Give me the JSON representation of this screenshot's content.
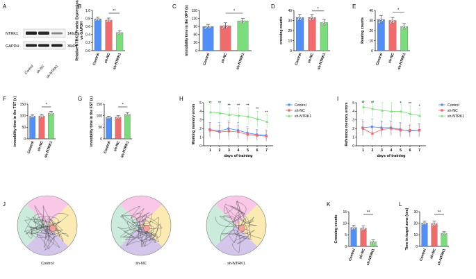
{
  "colors": {
    "control": "#4f8ff7",
    "shnc": "#f06b6b",
    "shntrk1": "#79dd79",
    "pink": "#f7b6df",
    "yellow": "#f9e49a",
    "purple": "#c5b3e4",
    "teal": "#b9e6d2"
  },
  "group_labels": [
    "Control",
    "sh-NC",
    "sh-NTRK1"
  ],
  "sig": {
    "s1": "*",
    "s2": "**"
  },
  "A": {
    "letter": "A",
    "lanes": [
      "Control",
      "sh-NC",
      "sh-NTRK1"
    ],
    "bands": [
      {
        "name": "NTRK1",
        "size": "140kDa"
      },
      {
        "name": "GAPDH",
        "size": "36kDa"
      }
    ]
  },
  "chart_data": [
    {
      "id": "B",
      "type": "bar",
      "title": "",
      "ylabel": "Relative NTRK1 Protein Expression vs GAPDH",
      "ylabel_lines": [
        "Relative NTRK1 Protein Expression",
        "vs GAPDH"
      ],
      "ylim": [
        0,
        1.0
      ],
      "yticks": [
        "0.0",
        "0.2",
        "0.4",
        "0.6",
        "0.8",
        "1.0"
      ],
      "categories": [
        "Control",
        "sh-NC",
        "sh-NTRK1"
      ],
      "values": [
        0.79,
        0.76,
        0.45
      ],
      "errors": [
        0.04,
        0.05,
        0.05
      ],
      "sig": {
        "from": 1,
        "to": 2,
        "label": "**"
      }
    },
    {
      "id": "C",
      "type": "bar",
      "title": "",
      "ylabel": "immobility time in the OFT (s)",
      "ylabel_lines": [
        "immobility time in the OFT (s)"
      ],
      "ylim": [
        0,
        150
      ],
      "yticks": [
        "0",
        "30",
        "60",
        "90",
        "120",
        "150"
      ],
      "categories": [
        "Control",
        "sh-NC",
        "sh-NTRK1"
      ],
      "values": [
        90,
        93,
        111
      ],
      "errors": [
        8,
        11,
        9
      ],
      "sig": {
        "from": 1,
        "to": 2,
        "label": "*"
      }
    },
    {
      "id": "D",
      "type": "bar",
      "title": "",
      "ylabel": "crossing counts",
      "ylabel_lines": [
        "crossing counts"
      ],
      "ylim": [
        0,
        40
      ],
      "yticks": [
        "0",
        "10",
        "20",
        "30",
        "40"
      ],
      "categories": [
        "Control",
        "sh-NC",
        "sh-NTRK1"
      ],
      "values": [
        33,
        33,
        28
      ],
      "errors": [
        3,
        3,
        3
      ],
      "sig": {
        "from": 1,
        "to": 2,
        "label": "*"
      }
    },
    {
      "id": "E",
      "type": "bar",
      "title": "",
      "ylabel": "Rearing counts",
      "ylabel_lines": [
        "Rearing counts"
      ],
      "ylim": [
        0,
        40
      ],
      "yticks": [
        "0",
        "10",
        "20",
        "30",
        "40"
      ],
      "categories": [
        "Control",
        "sh-NC",
        "sh-NTRK1"
      ],
      "values": [
        31,
        30,
        24
      ],
      "errors": [
        4,
        3,
        3
      ],
      "sig": {
        "from": 1,
        "to": 2,
        "label": "*"
      }
    },
    {
      "id": "F",
      "type": "bar",
      "title": "",
      "ylabel": "immobility time in the TST (s)",
      "ylabel_lines": [
        "immobility time in the TST (s)"
      ],
      "ylim": [
        0,
        150
      ],
      "yticks": [
        "0",
        "50",
        "100",
        "150"
      ],
      "categories": [
        "Control",
        "sh-NC",
        "sh-NTRK1"
      ],
      "values": [
        98,
        99,
        111
      ],
      "errors": [
        6,
        7,
        8
      ],
      "sig": {
        "from": 1,
        "to": 2,
        "label": "*"
      }
    },
    {
      "id": "G",
      "type": "bar",
      "title": "",
      "ylabel": "immobility time in the FST (s)",
      "ylabel_lines": [
        "immobility time in the FST (s)"
      ],
      "ylim": [
        0,
        150
      ],
      "yticks": [
        "0",
        "50",
        "100",
        "150"
      ],
      "categories": [
        "Control",
        "sh-NC",
        "sh-NTRK1"
      ],
      "values": [
        93,
        94,
        106
      ],
      "errors": [
        5,
        6,
        7
      ],
      "sig": {
        "from": 1,
        "to": 2,
        "label": "*"
      }
    },
    {
      "id": "H",
      "type": "line",
      "title": "",
      "xlabel": "days of training",
      "ylabel": "Working memory errors",
      "ylim": [
        0,
        5
      ],
      "yticks": [
        "0",
        "1",
        "2",
        "3",
        "4",
        "5"
      ],
      "x": [
        1,
        2,
        3,
        4,
        5,
        6,
        7
      ],
      "series": [
        {
          "name": "Control",
          "values": [
            1.9,
            1.7,
            2.0,
            1.8,
            1.5,
            1.3,
            1.2
          ],
          "errors": [
            0.8,
            1.0,
            0.9,
            0.9,
            0.7,
            0.6,
            0.6
          ]
        },
        {
          "name": "sh-NC",
          "values": [
            1.8,
            1.6,
            1.7,
            1.6,
            1.3,
            1.2,
            1.1
          ],
          "errors": [
            0.9,
            0.8,
            1.0,
            0.8,
            0.7,
            0.6,
            0.6
          ]
        },
        {
          "name": "sh-NTRK1",
          "values": [
            3.9,
            3.8,
            3.6,
            3.5,
            3.4,
            3.1,
            2.8
          ],
          "errors": [
            1.0,
            1.1,
            0.8,
            0.9,
            1.0,
            0.9,
            0.8
          ]
        }
      ],
      "annotations": [
        "**",
        "**",
        "**",
        "**",
        "**",
        "**",
        "**"
      ]
    },
    {
      "id": "I",
      "type": "line",
      "title": "",
      "xlabel": "days of training",
      "ylabel": "Reference memory errors",
      "ylim": [
        0,
        5
      ],
      "yticks": [
        "0",
        "1",
        "2",
        "3",
        "4",
        "5"
      ],
      "x": [
        1,
        2,
        3,
        4,
        5,
        6,
        7
      ],
      "series": [
        {
          "name": "Control",
          "values": [
            2.1,
            2.2,
            2.1,
            2.1,
            1.9,
            1.7,
            1.8
          ],
          "errors": [
            0.9,
            0.9,
            0.8,
            0.8,
            0.8,
            0.7,
            0.8
          ]
        },
        {
          "name": "sh-NC",
          "values": [
            2.0,
            1.4,
            1.9,
            2.0,
            1.8,
            1.8,
            1.8
          ],
          "errors": [
            0.8,
            0.7,
            0.9,
            0.8,
            0.8,
            0.7,
            0.7
          ]
        },
        {
          "name": "sh-NTRK1",
          "values": [
            4.5,
            4.3,
            4.1,
            4.0,
            4.0,
            3.7,
            3.5
          ],
          "errors": [
            0.8,
            0.9,
            0.9,
            1.0,
            1.0,
            0.9,
            0.8
          ]
        }
      ],
      "annotations": [
        "**",
        "**",
        "",
        "",
        "*",
        "**",
        "*"
      ]
    },
    {
      "id": "K",
      "type": "bar",
      "title": "",
      "ylabel": "Crossing counts",
      "ylabel_lines": [
        "Crossing counts"
      ],
      "ylim": [
        0,
        15
      ],
      "yticks": [
        "0",
        "5",
        "10",
        "15"
      ],
      "categories": [
        "Control",
        "sh-NC",
        "sh-NTRK1"
      ],
      "values": [
        8.2,
        7.9,
        2.0
      ],
      "errors": [
        1.0,
        0.9,
        0.8
      ],
      "sig": {
        "from": 1,
        "to": 2,
        "label": "**"
      }
    },
    {
      "id": "L",
      "type": "bar",
      "title": "",
      "ylabel": "Time in target zone (sec)",
      "ylabel_lines": [
        "Time in target zone (sec)"
      ],
      "ylim": [
        0,
        30
      ],
      "yticks": [
        "0",
        "10",
        "20",
        "30"
      ],
      "categories": [
        "Control",
        "sh-NC",
        "sh-NTRK1"
      ],
      "values": [
        20.3,
        19.8,
        11.4
      ],
      "errors": [
        1.5,
        2.0,
        1.3
      ],
      "sig": {
        "from": 1,
        "to": 2,
        "label": "**"
      }
    }
  ],
  "J": {
    "letter": "J",
    "captions": [
      "Control",
      "sh-NC",
      "sh-NTRK1"
    ]
  }
}
